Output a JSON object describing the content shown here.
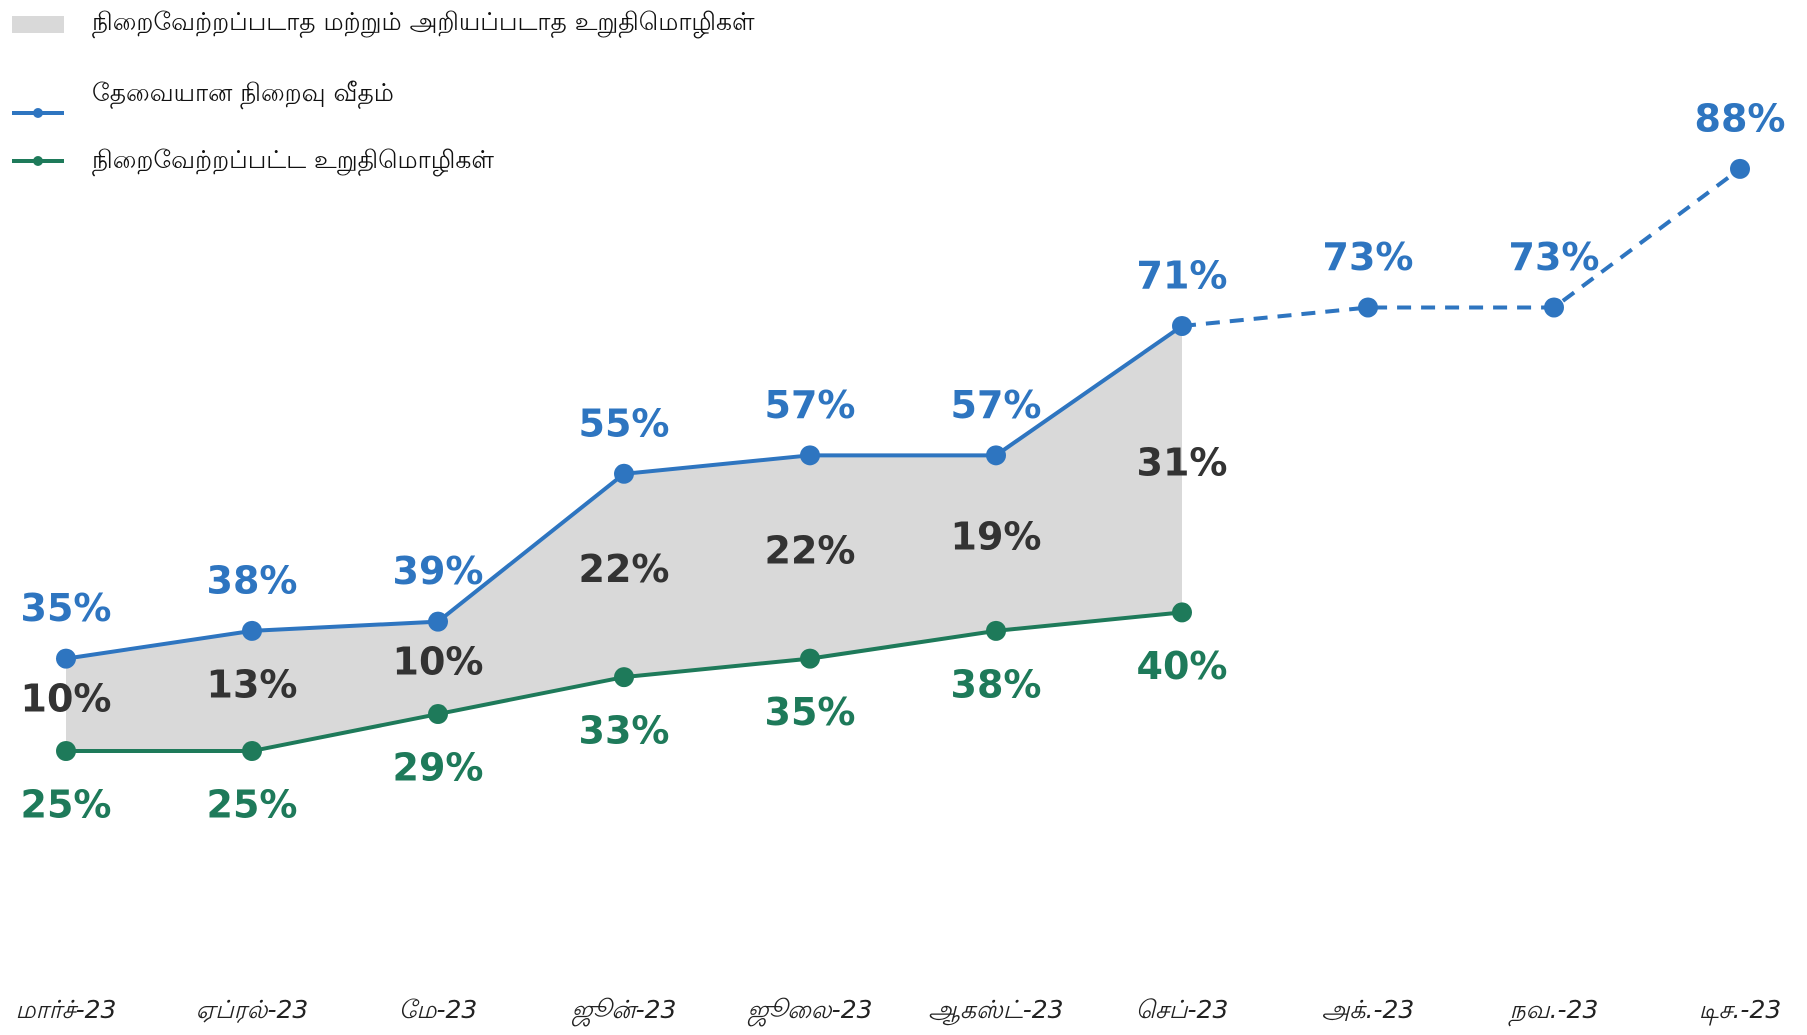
{
  "chart_data": {
    "type": "line",
    "categories": [
      "மார்ச்-23",
      "ஏப்ரல்-23",
      "மே-23",
      "ஜூன்-23",
      "ஜூலை-23",
      "ஆகஸ்ட்-23",
      "செப்-23",
      "அக்.-23",
      "நவ.-23",
      "டிச.-23"
    ],
    "dashed_from": "செப்-23",
    "series": [
      {
        "name": "நிறைவேற்றப்படாத மற்றும் அறியப்படாத உறுதிமொழிகள்",
        "kind": "area",
        "color": "#d9d9d9",
        "values": [
          10,
          13,
          10,
          22,
          22,
          19,
          31,
          null,
          null,
          null
        ],
        "value_labels": [
          "10%",
          "13%",
          "10%",
          "22%",
          "22%",
          "19%",
          "31%",
          null,
          null,
          null
        ]
      },
      {
        "name": "தேவையான நிறைவு வீதம்",
        "kind": "line",
        "color": "#2e75c0",
        "values": [
          35,
          38,
          39,
          55,
          57,
          57,
          71,
          73,
          73,
          88
        ],
        "value_labels": [
          "35%",
          "38%",
          "39%",
          "55%",
          "57%",
          "57%",
          "71%",
          "73%",
          "73%",
          "88%"
        ]
      },
      {
        "name": "நிறைவேற்றப்பட்ட உறுதிமொழிகள்",
        "kind": "line",
        "color": "#1e7a5a",
        "values": [
          25,
          25,
          29,
          33,
          35,
          38,
          40,
          null,
          null,
          null
        ],
        "value_labels": [
          "25%",
          "25%",
          "29%",
          "33%",
          "35%",
          "38%",
          "40%",
          null,
          null,
          null
        ]
      }
    ]
  }
}
